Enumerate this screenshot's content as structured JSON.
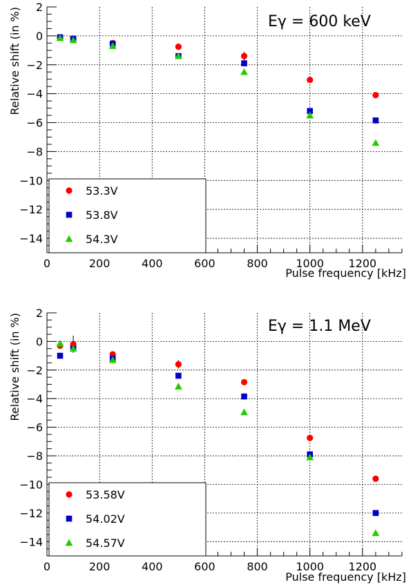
{
  "chart_data": [
    {
      "type": "scatter",
      "annotation": "Eγ = 600 keV",
      "xlabel": "Pulse frequency [kHz]",
      "ylabel": "Relative shift (in %)",
      "xlim": [
        0,
        1350
      ],
      "ylim": [
        -15,
        2
      ],
      "xticks": [
        0,
        200,
        400,
        600,
        800,
        1000,
        1200
      ],
      "yticks": [
        2,
        0,
        -2,
        -4,
        -6,
        -8,
        -10,
        -12,
        -14
      ],
      "grid": true,
      "legend_position": "bottom-left",
      "series": [
        {
          "name": "53.3V",
          "marker": "circle",
          "color": "#ff0000",
          "x": [
            50,
            100,
            250,
            500,
            750,
            1000,
            1250
          ],
          "y": [
            -0.1,
            -0.2,
            -0.5,
            -0.75,
            -1.4,
            -3.05,
            -4.1
          ],
          "err": [
            0,
            0,
            0,
            0,
            0.3,
            0.15,
            0
          ]
        },
        {
          "name": "53.8V",
          "marker": "square",
          "color": "#0000cc",
          "x": [
            50,
            100,
            250,
            500,
            750,
            1000,
            1250
          ],
          "y": [
            -0.1,
            -0.2,
            -0.55,
            -1.4,
            -1.9,
            -5.2,
            -5.85
          ],
          "err": [
            0,
            0,
            0,
            0,
            0,
            0,
            0
          ]
        },
        {
          "name": "54.3V",
          "marker": "triangle",
          "color": "#22cc00",
          "x": [
            50,
            100,
            250,
            500,
            750,
            1000,
            1250
          ],
          "y": [
            -0.15,
            -0.3,
            -0.7,
            -1.4,
            -2.5,
            -5.5,
            -7.4
          ],
          "err": [
            0,
            0,
            0,
            0,
            0,
            0,
            0
          ]
        }
      ]
    },
    {
      "type": "scatter",
      "annotation": "Eγ = 1.1 MeV",
      "xlabel": "Pulse frequency [kHz]",
      "ylabel": "Relative shift (in %)",
      "xlim": [
        0,
        1350
      ],
      "ylim": [
        -15,
        2
      ],
      "xticks": [
        0,
        200,
        400,
        600,
        800,
        1000,
        1200
      ],
      "yticks": [
        2,
        0,
        -2,
        -4,
        -6,
        -8,
        -10,
        -12,
        -14
      ],
      "grid": true,
      "legend_position": "bottom-left",
      "series": [
        {
          "name": "53.58V",
          "marker": "circle",
          "color": "#ff0000",
          "x": [
            50,
            100,
            250,
            500,
            750,
            1000,
            1250
          ],
          "y": [
            -0.3,
            -0.2,
            -0.9,
            -1.6,
            -2.85,
            -6.75,
            -9.6
          ],
          "err": [
            0,
            0.6,
            0.15,
            0.3,
            0,
            0.2,
            0
          ]
        },
        {
          "name": "54.02V",
          "marker": "square",
          "color": "#0000cc",
          "x": [
            50,
            100,
            250,
            500,
            750,
            1000,
            1250
          ],
          "y": [
            -1.0,
            -0.5,
            -1.2,
            -2.4,
            -3.85,
            -7.9,
            -12.0
          ],
          "err": [
            0,
            0,
            0,
            0,
            0,
            0,
            0
          ]
        },
        {
          "name": "54.57V",
          "marker": "triangle",
          "color": "#22cc00",
          "x": [
            50,
            100,
            250,
            500,
            750,
            1000,
            1250
          ],
          "y": [
            -0.15,
            -0.5,
            -1.3,
            -3.15,
            -4.95,
            -8.1,
            -13.4
          ],
          "err": [
            0,
            0,
            0,
            0,
            0,
            0,
            0
          ]
        }
      ]
    }
  ]
}
